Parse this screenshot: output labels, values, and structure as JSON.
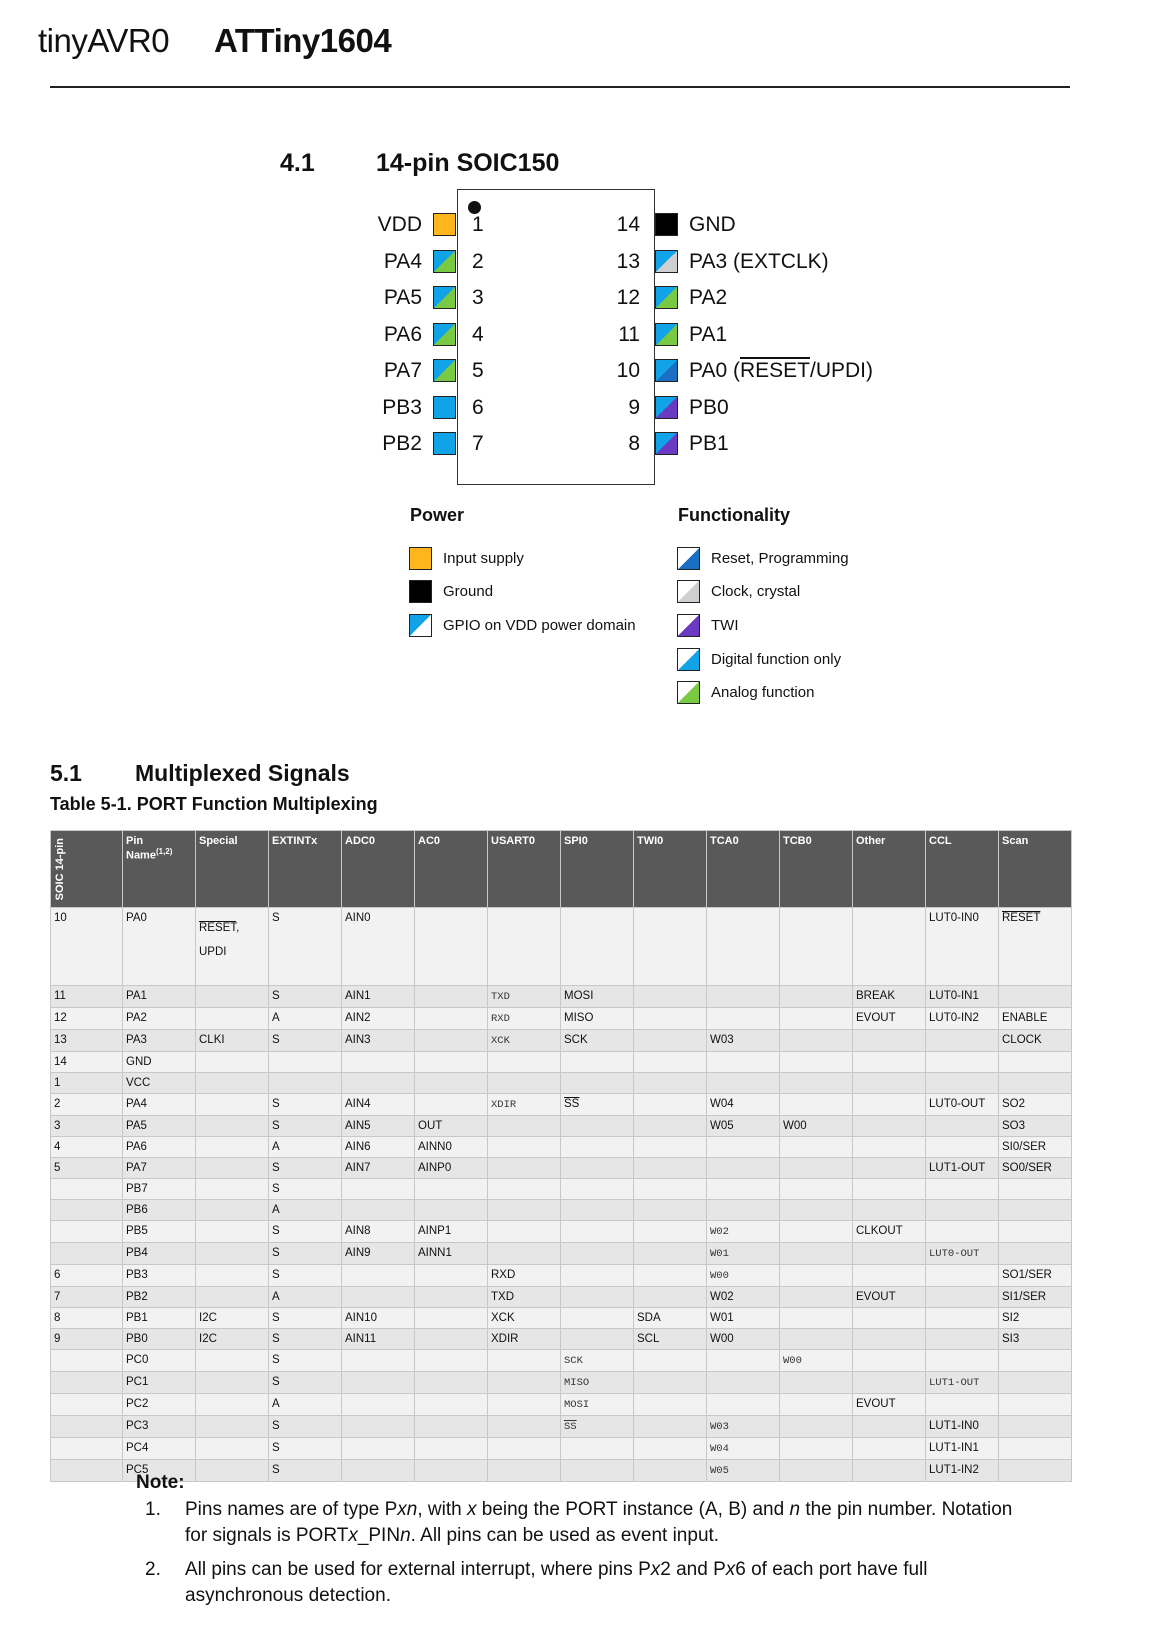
{
  "header": {
    "family": "tinyAVR0",
    "part": "ATTiny1604"
  },
  "pinout": {
    "section_num": "4.1",
    "section_title": "14-pin SOIC150",
    "left_pins": [
      {
        "name": "VDD",
        "num": "1",
        "type": "vdd"
      },
      {
        "name": "PA4",
        "num": "2",
        "type": "analog"
      },
      {
        "name": "PA5",
        "num": "3",
        "type": "analog"
      },
      {
        "name": "PA6",
        "num": "4",
        "type": "analog"
      },
      {
        "name": "PA7",
        "num": "5",
        "type": "analog"
      },
      {
        "name": "PB3",
        "num": "6",
        "type": "digital"
      },
      {
        "name": "PB2",
        "num": "7",
        "type": "digital"
      }
    ],
    "right_pins": [
      {
        "num": "14",
        "name": "GND",
        "type": "gnd"
      },
      {
        "num": "13",
        "name": "PA3 (EXTCLK)",
        "type": "clock"
      },
      {
        "num": "12",
        "name": "PA2",
        "type": "analog"
      },
      {
        "num": "11",
        "name": "PA1",
        "type": "analog"
      },
      {
        "num": "10",
        "name_pre": "PA0 (",
        "name_over": "RESET",
        "name_post": "/UPDI)",
        "type": "reset"
      },
      {
        "num": "9",
        "name": "PB0",
        "type": "twi"
      },
      {
        "num": "8",
        "name": "PB1",
        "type": "twi"
      }
    ]
  },
  "legend": {
    "power_title": "Power",
    "power_items": [
      "Input supply",
      "Ground",
      "GPIO on VDD power domain"
    ],
    "func_title": "Functionality",
    "func_items": [
      "Reset, Programming",
      "Clock, crystal",
      "TWI",
      "Digital function only",
      "Analog function"
    ]
  },
  "mux": {
    "section_num": "5.1",
    "section_title": "Multiplexed Signals",
    "table_title": "Table 5-1. PORT Function Multiplexing",
    "headers": [
      "SOIC 14-pin",
      "Pin Name",
      "Special",
      "EXTINTx",
      "ADC0",
      "AC0",
      "USART0",
      "SPI0",
      "TWI0",
      "TCA0",
      "TCB0",
      "Other",
      "CCL",
      "Scan"
    ],
    "header_sup": "(1,2)",
    "row0": {
      "soic": "10",
      "pin": "PA0",
      "special_over": "RESET",
      "special_post": ",",
      "special_line2": "UPDI",
      "ext": "S",
      "adc": "AIN0",
      "ccl": "LUT0-IN0",
      "scan": "RESET"
    },
    "rows": [
      [
        "11",
        "PA1",
        "",
        "S",
        "AIN1",
        "",
        "~TXD",
        "MOSI",
        "",
        "",
        "",
        "BREAK",
        "LUT0-IN1",
        ""
      ],
      [
        "12",
        "PA2",
        "",
        "A",
        "AIN2",
        "",
        "~RXD",
        "MISO",
        "",
        "",
        "",
        "EVOUT",
        "LUT0-IN2",
        "ENABLE"
      ],
      [
        "13",
        "PA3",
        "CLKI",
        "S",
        "AIN3",
        "",
        "~XCK",
        "SCK",
        "",
        "W03",
        "",
        "",
        "",
        "CLOCK"
      ],
      [
        "14",
        "GND",
        "",
        "",
        "",
        "",
        "",
        "",
        "",
        "",
        "",
        "",
        "",
        ""
      ],
      [
        "1",
        "VCC",
        "",
        "",
        "",
        "",
        "",
        "",
        "",
        "",
        "",
        "",
        "",
        ""
      ],
      [
        "2",
        "PA4",
        "",
        "S",
        "AIN4",
        "",
        "~XDIR",
        "!SS",
        "",
        "W04",
        "",
        "",
        "LUT0-OUT",
        "SO2"
      ],
      [
        "3",
        "PA5",
        "",
        "S",
        "AIN5",
        "OUT",
        "",
        "",
        "",
        "W05",
        "W00",
        "",
        "",
        "SO3"
      ],
      [
        "4",
        "PA6",
        "",
        "A",
        "AIN6",
        "AINN0",
        "",
        "",
        "",
        "",
        "",
        "",
        "",
        "SI0/SER"
      ],
      [
        "5",
        "PA7",
        "",
        "S",
        "AIN7",
        "AINP0",
        "",
        "",
        "",
        "",
        "",
        "",
        "LUT1-OUT",
        "SO0/SER"
      ],
      [
        "",
        "PB7",
        "",
        "S",
        "",
        "",
        "",
        "",
        "",
        "",
        "",
        "",
        "",
        ""
      ],
      [
        "",
        "PB6",
        "",
        "A",
        "",
        "",
        "",
        "",
        "",
        "",
        "",
        "",
        "",
        ""
      ],
      [
        "",
        "PB5",
        "",
        "S",
        "AIN8",
        "AINP1",
        "",
        "",
        "",
        "~W02",
        "",
        "CLKOUT",
        "",
        ""
      ],
      [
        "",
        "PB4",
        "",
        "S",
        "AIN9",
        "AINN1",
        "",
        "",
        "",
        "~W01",
        "",
        "",
        "~LUT0-OUT",
        ""
      ],
      [
        "6",
        "PB3",
        "",
        "S",
        "",
        "",
        "RXD",
        "",
        "",
        "~W00",
        "",
        "",
        "",
        "SO1/SER"
      ],
      [
        "7",
        "PB2",
        "",
        "A",
        "",
        "",
        "TXD",
        "",
        "",
        "W02",
        "",
        "EVOUT",
        "",
        "SI1/SER"
      ],
      [
        "8",
        "PB1",
        "I2C",
        "S",
        "AIN10",
        "",
        "XCK",
        "",
        "SDA",
        "W01",
        "",
        "",
        "",
        "SI2"
      ],
      [
        "9",
        "PB0",
        "I2C",
        "S",
        "AIN11",
        "",
        "XDIR",
        "",
        "SCL",
        "W00",
        "",
        "",
        "",
        "SI3"
      ],
      [
        "",
        "PC0",
        "",
        "S",
        "",
        "",
        "",
        "~SCK",
        "",
        "",
        "~W00",
        "",
        "",
        ""
      ],
      [
        "",
        "PC1",
        "",
        "S",
        "",
        "",
        "",
        "~MISO",
        "",
        "",
        "",
        "",
        "~LUT1-OUT",
        ""
      ],
      [
        "",
        "PC2",
        "",
        "A",
        "",
        "",
        "",
        "~MOSI",
        "",
        "",
        "",
        "EVOUT",
        "",
        ""
      ],
      [
        "",
        "PC3",
        "",
        "S",
        "",
        "",
        "",
        "~!SS",
        "",
        "~W03",
        "",
        "",
        "LUT1-IN0",
        ""
      ],
      [
        "",
        "PC4",
        "",
        "S",
        "",
        "",
        "",
        "",
        "",
        "~W04",
        "",
        "",
        "LUT1-IN1",
        ""
      ],
      [
        "",
        "PC5",
        "",
        "S",
        "",
        "",
        "",
        "",
        "",
        "~W05",
        "",
        "",
        "LUT1-IN2",
        ""
      ]
    ]
  },
  "notes": {
    "title": "Note:",
    "items": [
      {
        "num": "1.",
        "line1_parts": [
          "Pins names are of type P",
          "xn",
          ", with ",
          "x",
          " being the PORT instance (A, B) and ",
          "n",
          " the pin number. Notation"
        ],
        "line2_parts": [
          "for signals is PORT",
          "x",
          "_PIN",
          "n",
          ". All pins can be used as event input."
        ]
      },
      {
        "num": "2.",
        "line1_parts": [
          "All pins can be used for external interrupt, where pins P",
          "x",
          "2 and P",
          "x",
          "6 of each port have full"
        ],
        "line2_parts": [
          "asynchronous detection."
        ]
      }
    ]
  },
  "colors": {
    "vdd": "#ffb61c",
    "digital": "#11a3e8",
    "analog": "#7ac943",
    "reset": "#1a6fc2",
    "twi": "#6a3ac2",
    "clock": "#cfcfcf",
    "table_header": "#595959"
  }
}
